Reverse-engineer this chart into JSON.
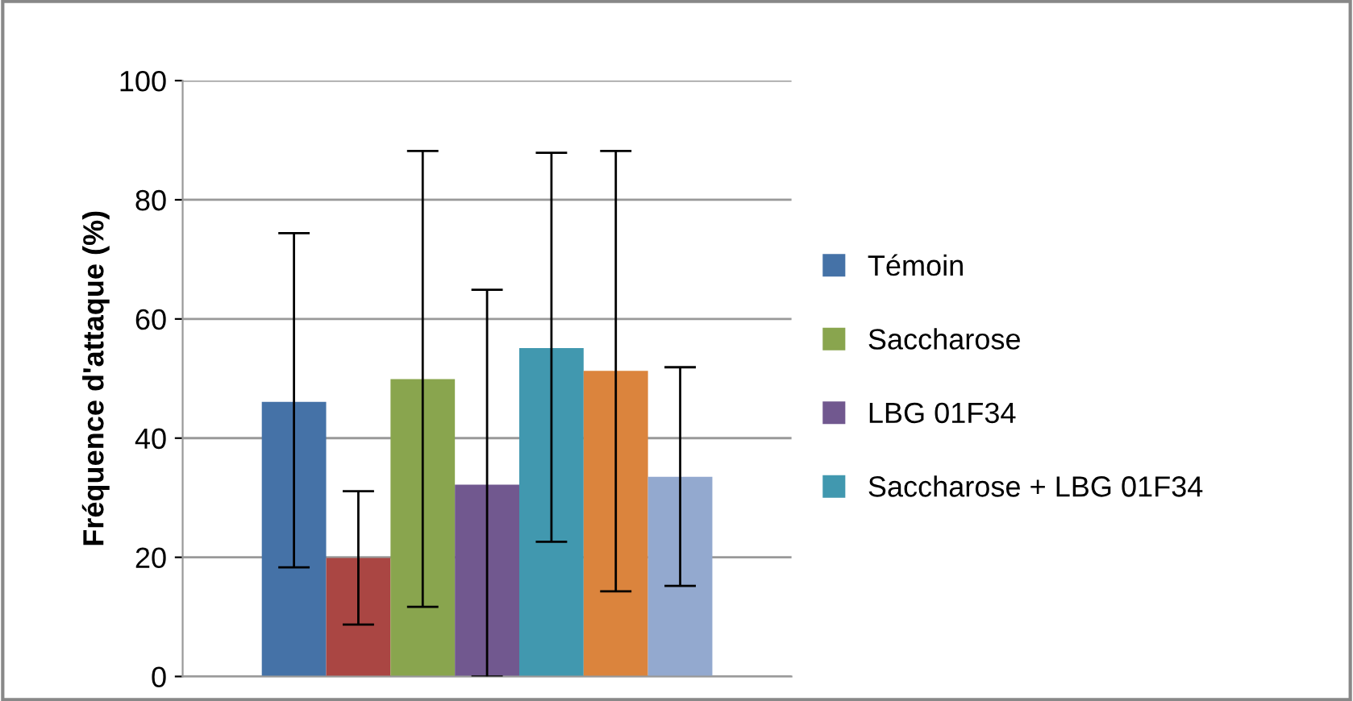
{
  "chart_data": {
    "type": "bar",
    "ylabel": "Fréquence d'attaque (%)",
    "categories": [
      null
    ],
    "series": [
      {
        "name": "Témoin",
        "color": "#4572a7",
        "values": [
          46.1
        ],
        "errors": [
          [
            18.3,
            74.4
          ]
        ]
      },
      {
        "color": "#aa4643",
        "values": [
          19.9
        ],
        "errors": [
          [
            8.7,
            31.1
          ]
        ]
      },
      {
        "name": "Saccharose",
        "color": "#89a54e",
        "values": [
          49.9
        ],
        "errors": [
          [
            11.7,
            88.2
          ]
        ]
      },
      {
        "name": "LBG 01F34",
        "color": "#71588f",
        "values": [
          32.2
        ],
        "errors": [
          [
            0,
            64.9
          ]
        ]
      },
      {
        "name": "Saccharose + LBG 01F34",
        "color": "#4198af",
        "values": [
          55.1
        ],
        "errors": [
          [
            22.6,
            87.9
          ]
        ]
      },
      {
        "color": "#db843d",
        "values": [
          51.3
        ],
        "errors": [
          [
            14.3,
            88.2
          ]
        ]
      },
      {
        "color": "#93a9cf",
        "values": [
          33.5
        ],
        "errors": [
          [
            15.2,
            51.9
          ]
        ]
      }
    ],
    "ylim": [
      0,
      100
    ],
    "yticks": [
      0,
      20,
      40,
      60,
      80,
      100
    ],
    "grid": "y",
    "legend": "right"
  }
}
